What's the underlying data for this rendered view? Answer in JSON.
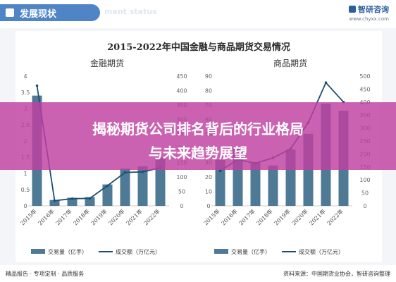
{
  "header": {
    "title": "发展现状",
    "watermark": "ment status",
    "brand_name": "智研咨询",
    "brand_url": "www.chyxx.com"
  },
  "banner": {
    "line1": "揭秘期货公司排名背后的行业格局",
    "line2": "与未来趋势展望"
  },
  "footer": {
    "left": "精品报告 · 专项定制 · 品质服务",
    "right": "资料来源：中国期货业协会，智研咨询整理"
  },
  "colors": {
    "bar": "#4e7a96",
    "line": "#1d4e73",
    "accent": "#4f85c6",
    "overlay": "#c040a0"
  },
  "chart_data": [
    {
      "type": "bar",
      "title": "2015-2022年中国金融与商品期货交易情况",
      "subtitle": "金融期货",
      "categories": [
        "2015年",
        "2016年",
        "2017年",
        "2018年",
        "2019年",
        "2020年",
        "2021年",
        "2022年"
      ],
      "series": [
        {
          "name": "交易量（亿手）",
          "type": "bar",
          "axis": "left",
          "values": [
            3.4,
            0.18,
            0.25,
            0.27,
            0.66,
            1.15,
            1.22,
            1.5
          ]
        },
        {
          "name": "成交额（万亿元）",
          "type": "line",
          "axis": "right",
          "values": [
            417,
            18,
            25,
            26,
            70,
            116,
            118,
            132
          ]
        }
      ],
      "ylim": [
        0,
        4
      ],
      "yticks": [
        0,
        0.5,
        1,
        1.5,
        2,
        2.5,
        3,
        3.5,
        4
      ],
      "y2lim": [
        0,
        450
      ],
      "y2ticks": [
        0,
        50,
        100,
        150,
        200,
        250,
        300,
        350,
        400,
        450
      ],
      "legend": "bottom"
    },
    {
      "type": "bar",
      "subtitle": "商品期货",
      "categories": [
        "2015年",
        "2016年",
        "2017年",
        "2018年",
        "2019年",
        "2020年",
        "2021年",
        "2022年"
      ],
      "series": [
        {
          "name": "交易量（亿手）",
          "type": "bar",
          "axis": "left",
          "values": [
            32,
            41,
            30,
            28,
            39,
            50,
            71,
            66
          ]
        },
        {
          "name": "成交额（万亿元）",
          "type": "line",
          "axis": "right",
          "values": [
            135,
            178,
            164,
            185,
            220,
            321,
            475,
            400
          ]
        }
      ],
      "ylim": [
        0,
        90
      ],
      "yticks": [
        0,
        10,
        20,
        30,
        40,
        50,
        60,
        70,
        80,
        90
      ],
      "y2lim": [
        0,
        500
      ],
      "y2ticks": [
        0,
        50,
        100,
        150,
        200,
        250,
        300,
        350,
        400,
        450,
        500
      ],
      "legend": "bottom"
    }
  ]
}
